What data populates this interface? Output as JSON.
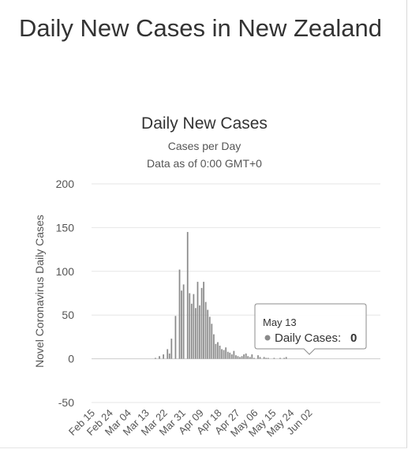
{
  "page": {
    "title": "Daily New Cases in New Zealand"
  },
  "colors": {
    "bar": "#8a8a8a",
    "grid": "#e6e6e6",
    "text": "#333333",
    "tooltip_border": "#8c8c8c",
    "tooltip_dot": "#8a8a8a"
  },
  "chart_data": {
    "type": "bar",
    "title": "Daily New Cases",
    "subtitle_lines": [
      "Cases per Day",
      "Data as of 0:00 GMT+0"
    ],
    "ylabel": "Novel Coronavirus Daily Cases",
    "xlabel": "",
    "ylim": [
      -50,
      200
    ],
    "yticks": [
      200,
      150,
      100,
      50,
      0,
      -50
    ],
    "grid": true,
    "legend": "none",
    "x_tick_labels": [
      "Feb 15",
      "Feb 24",
      "Mar 04",
      "Mar 13",
      "Mar 22",
      "Mar 31",
      "Apr 09",
      "Apr 18",
      "Apr 27",
      "May 06",
      "May 15",
      "May 24",
      "Jun 02"
    ],
    "start_date": "Feb 15",
    "values": [
      0,
      0,
      0,
      0,
      0,
      0,
      0,
      0,
      0,
      0,
      0,
      0,
      0,
      0,
      0,
      0,
      0,
      0,
      0,
      0,
      0,
      0,
      0,
      0,
      0,
      0,
      0,
      0,
      0,
      0,
      0,
      1,
      0,
      3,
      0,
      5,
      0,
      11,
      6,
      23,
      0,
      49,
      0,
      102,
      78,
      85,
      0,
      145,
      75,
      63,
      74,
      58,
      88,
      61,
      81,
      88,
      65,
      56,
      48,
      40,
      28,
      17,
      19,
      15,
      11,
      10,
      13,
      8,
      7,
      5,
      9,
      4,
      3,
      2,
      3,
      5,
      6,
      3,
      2,
      5,
      1,
      0,
      4,
      2,
      0,
      2,
      1,
      1,
      0,
      0,
      1,
      0,
      0,
      1,
      0,
      1,
      2,
      0,
      0
    ],
    "tooltip": {
      "date": "May 13",
      "series_label": "Daily Cases:",
      "value": "0"
    }
  }
}
